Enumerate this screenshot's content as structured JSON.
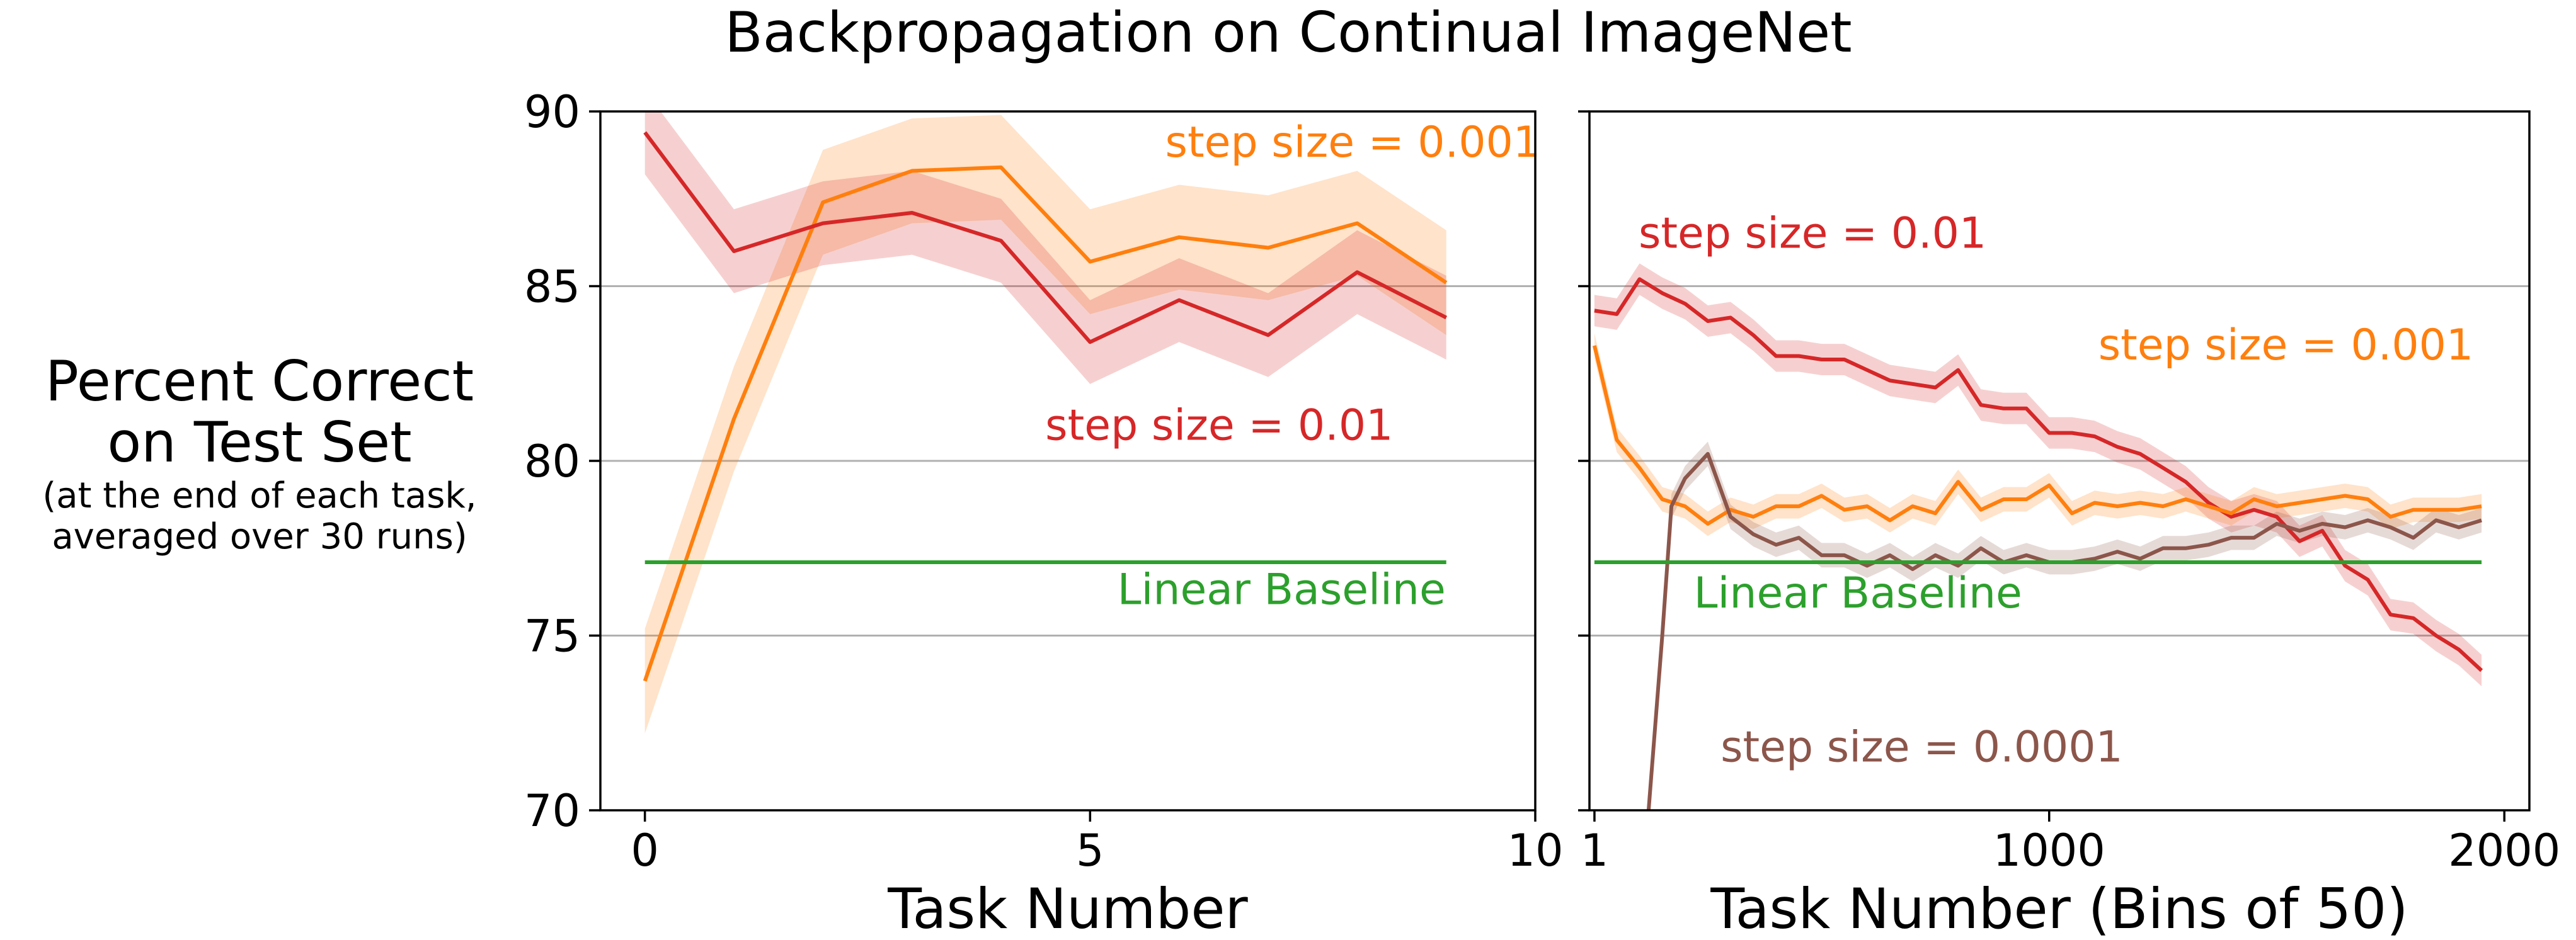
{
  "title": "Backpropagation on Continual ImageNet",
  "ylabel": {
    "line1": "Percent Correct",
    "line2": "on Test Set",
    "note1": "(at the end of each task,",
    "note2": "averaged over 30 runs)"
  },
  "colors": {
    "red": "#d62728",
    "orange": "#ff7f0e",
    "brown": "#8c564b",
    "green": "#2ca02c",
    "grid": "#b0b0b0",
    "axis": "#000000"
  },
  "chart_data": [
    {
      "type": "line",
      "xlabel": "Task Number",
      "xlim": [
        -0.5,
        10
      ],
      "ylim": [
        70,
        90
      ],
      "xticks": [
        0,
        5,
        10
      ],
      "yticks": [
        70,
        75,
        80,
        85,
        90
      ],
      "grid": "horizontal",
      "series": [
        {
          "label": "step size = 0.001",
          "color": "orange",
          "x": [
            0,
            1,
            2,
            3,
            4,
            5,
            6,
            7,
            8,
            9
          ],
          "values": [
            73.7,
            81.2,
            87.4,
            88.3,
            88.4,
            85.7,
            86.4,
            86.1,
            86.8,
            85.1
          ],
          "band": 1.5
        },
        {
          "label": "step size = 0.01",
          "color": "red",
          "x": [
            0,
            1,
            2,
            3,
            4,
            5,
            6,
            7,
            8,
            9
          ],
          "values": [
            89.4,
            86.0,
            86.8,
            87.1,
            86.3,
            83.4,
            84.6,
            83.6,
            85.4,
            84.1
          ],
          "band": 1.2
        },
        {
          "label": "Linear Baseline",
          "color": "green",
          "x": [
            0,
            9
          ],
          "values": [
            77.1,
            77.1
          ],
          "band": 0
        }
      ],
      "annotations": [
        {
          "text": "step size = 0.001",
          "color": "orange",
          "x": 7.95,
          "y": 88.7
        },
        {
          "text": "step size = 0.01",
          "color": "red",
          "x": 6.45,
          "y": 80.6
        },
        {
          "text": "Linear Baseline",
          "color": "green",
          "x": 7.15,
          "y": 75.9
        }
      ]
    },
    {
      "type": "line",
      "xlabel": "Task Number (Bins of 50)",
      "xlim": [
        -10,
        2055
      ],
      "ylim": [
        70,
        90
      ],
      "xticks": [
        1,
        1000,
        2000
      ],
      "yticks": [
        70,
        75,
        80,
        85,
        90
      ],
      "grid": "horizontal",
      "series": [
        {
          "label": "step size = 0.01",
          "color": "red",
          "x": [
            1,
            50,
            100,
            150,
            200,
            250,
            300,
            350,
            400,
            450,
            500,
            550,
            600,
            650,
            700,
            750,
            800,
            850,
            900,
            950,
            1000,
            1050,
            1100,
            1150,
            1200,
            1250,
            1300,
            1350,
            1400,
            1450,
            1500,
            1550,
            1600,
            1650,
            1700,
            1750,
            1800,
            1850,
            1900,
            1950
          ],
          "values": [
            84.3,
            84.2,
            85.2,
            84.8,
            84.5,
            84.0,
            84.1,
            83.6,
            83.0,
            83.0,
            82.9,
            82.9,
            82.6,
            82.3,
            82.2,
            82.1,
            82.6,
            81.6,
            81.5,
            81.5,
            80.8,
            80.8,
            80.7,
            80.4,
            80.2,
            79.8,
            79.4,
            78.8,
            78.4,
            78.6,
            78.4,
            77.7,
            78.0,
            77.0,
            76.6,
            75.6,
            75.5,
            75.0,
            74.6,
            74.0
          ],
          "band": 0.45
        },
        {
          "label": "step size = 0.001",
          "color": "orange",
          "x": [
            1,
            50,
            100,
            150,
            200,
            250,
            300,
            350,
            400,
            450,
            500,
            550,
            600,
            650,
            700,
            750,
            800,
            850,
            900,
            950,
            1000,
            1050,
            1100,
            1150,
            1200,
            1250,
            1300,
            1350,
            1400,
            1450,
            1500,
            1550,
            1600,
            1650,
            1700,
            1750,
            1800,
            1850,
            1900,
            1950
          ],
          "values": [
            83.3,
            80.6,
            79.8,
            78.9,
            78.7,
            78.2,
            78.6,
            78.4,
            78.7,
            78.7,
            79.0,
            78.6,
            78.7,
            78.3,
            78.7,
            78.5,
            79.4,
            78.6,
            78.9,
            78.9,
            79.3,
            78.5,
            78.8,
            78.7,
            78.8,
            78.7,
            78.9,
            78.7,
            78.5,
            78.9,
            78.7,
            78.8,
            78.9,
            79.0,
            78.9,
            78.4,
            78.6,
            78.6,
            78.6,
            78.7
          ],
          "band": 0.35
        },
        {
          "label": "step size = 0.0001",
          "color": "brown",
          "x": [
            120,
            150,
            170,
            200,
            250,
            300,
            350,
            400,
            450,
            500,
            550,
            600,
            650,
            700,
            750,
            800,
            850,
            900,
            950,
            1000,
            1050,
            1100,
            1150,
            1200,
            1250,
            1300,
            1350,
            1400,
            1450,
            1500,
            1550,
            1600,
            1650,
            1700,
            1750,
            1800,
            1850,
            1900,
            1950
          ],
          "values": [
            70.0,
            75.0,
            78.7,
            79.5,
            80.2,
            78.4,
            77.9,
            77.6,
            77.8,
            77.3,
            77.3,
            77.0,
            77.3,
            76.9,
            77.3,
            77.0,
            77.5,
            77.1,
            77.3,
            77.1,
            77.1,
            77.2,
            77.4,
            77.2,
            77.5,
            77.5,
            77.6,
            77.8,
            77.8,
            78.2,
            78.0,
            78.2,
            78.1,
            78.3,
            78.1,
            77.8,
            78.3,
            78.1,
            78.3
          ],
          "band": 0.35
        },
        {
          "label": "Linear Baseline",
          "color": "green",
          "x": [
            1,
            1950
          ],
          "values": [
            77.1,
            77.1
          ],
          "band": 0
        }
      ],
      "annotations": [
        {
          "text": "step size = 0.01",
          "color": "red",
          "x": 480,
          "y": 86.1
        },
        {
          "text": "step size = 0.001",
          "color": "orange",
          "x": 1520,
          "y": 82.9
        },
        {
          "text": "Linear Baseline",
          "color": "green",
          "x": 580,
          "y": 75.8
        },
        {
          "text": "step size = 0.0001",
          "color": "brown",
          "x": 720,
          "y": 71.4
        }
      ]
    }
  ]
}
